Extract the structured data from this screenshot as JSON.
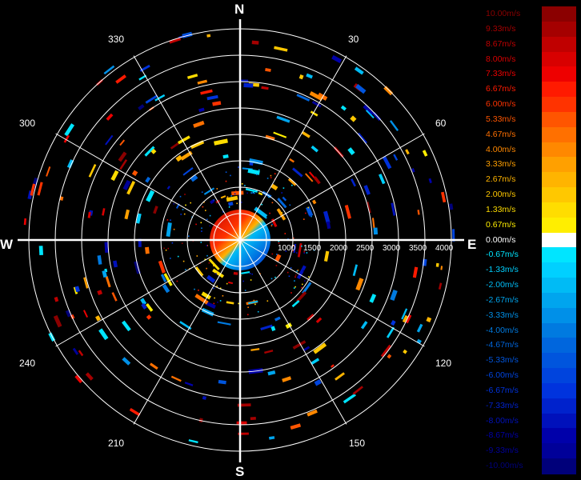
{
  "compass": {
    "north": "N",
    "south": "S",
    "west": "W",
    "east": "E"
  },
  "bearings": [
    "30",
    "60",
    "120",
    "150",
    "210",
    "240",
    "300",
    "330"
  ],
  "ranges": [
    "1000",
    "1500",
    "2000",
    "2500",
    "3000",
    "3500",
    "4000"
  ],
  "legend": {
    "labels": [
      "10.00m/s",
      "9.33m/s",
      "8.67m/s",
      "8.00m/s",
      "7.33m/s",
      "6.67m/s",
      "6.00m/s",
      "5.33m/s",
      "4.67m/s",
      "4.00m/s",
      "3.33m/s",
      "2.67m/s",
      "2.00m/s",
      "1.33m/s",
      "0.67m/s",
      "0.00m/s",
      "-0.67m/s",
      "-1.33m/s",
      "-2.00m/s",
      "-2.67m/s",
      "-3.33m/s",
      "-4.00m/s",
      "-4.67m/s",
      "-5.33m/s",
      "-6.00m/s",
      "-6.67m/s",
      "-7.33m/s",
      "-8.00m/s",
      "-8.67m/s",
      "-9.33m/s",
      "-10.00m/s"
    ],
    "colors": [
      "#8b0000",
      "#a50000",
      "#c00000",
      "#d80000",
      "#ee0000",
      "#ff1a00",
      "#ff3300",
      "#ff5500",
      "#ff7000",
      "#ff8800",
      "#ffa000",
      "#ffb400",
      "#ffc800",
      "#ffdd00",
      "#ffee00",
      "#ffffff",
      "#00e5ff",
      "#00d0ff",
      "#00bbf5",
      "#00a5ee",
      "#0090e8",
      "#007ae0",
      "#0066dd",
      "#0055dd",
      "#0044dd",
      "#0033dd",
      "#0022cc",
      "#0011bb",
      "#0000aa",
      "#000099",
      "#00007a"
    ],
    "label_colors": [
      "#8b0000",
      "#a50000",
      "#c00000",
      "#d80000",
      "#ee0000",
      "#ff1a00",
      "#ff3300",
      "#ff5500",
      "#ff7000",
      "#ff8800",
      "#ffa000",
      "#ffb400",
      "#ffc800",
      "#ffdd00",
      "#ffee00",
      "#ffffff",
      "#00e5ff",
      "#00d0ff",
      "#00bbf5",
      "#00a5ee",
      "#0090e8",
      "#007ae0",
      "#0066dd",
      "#0055dd",
      "#0044dd",
      "#0033dd",
      "#0022cc",
      "#0011bb",
      "#0000aa",
      "#000099",
      "#00007a"
    ]
  }
}
